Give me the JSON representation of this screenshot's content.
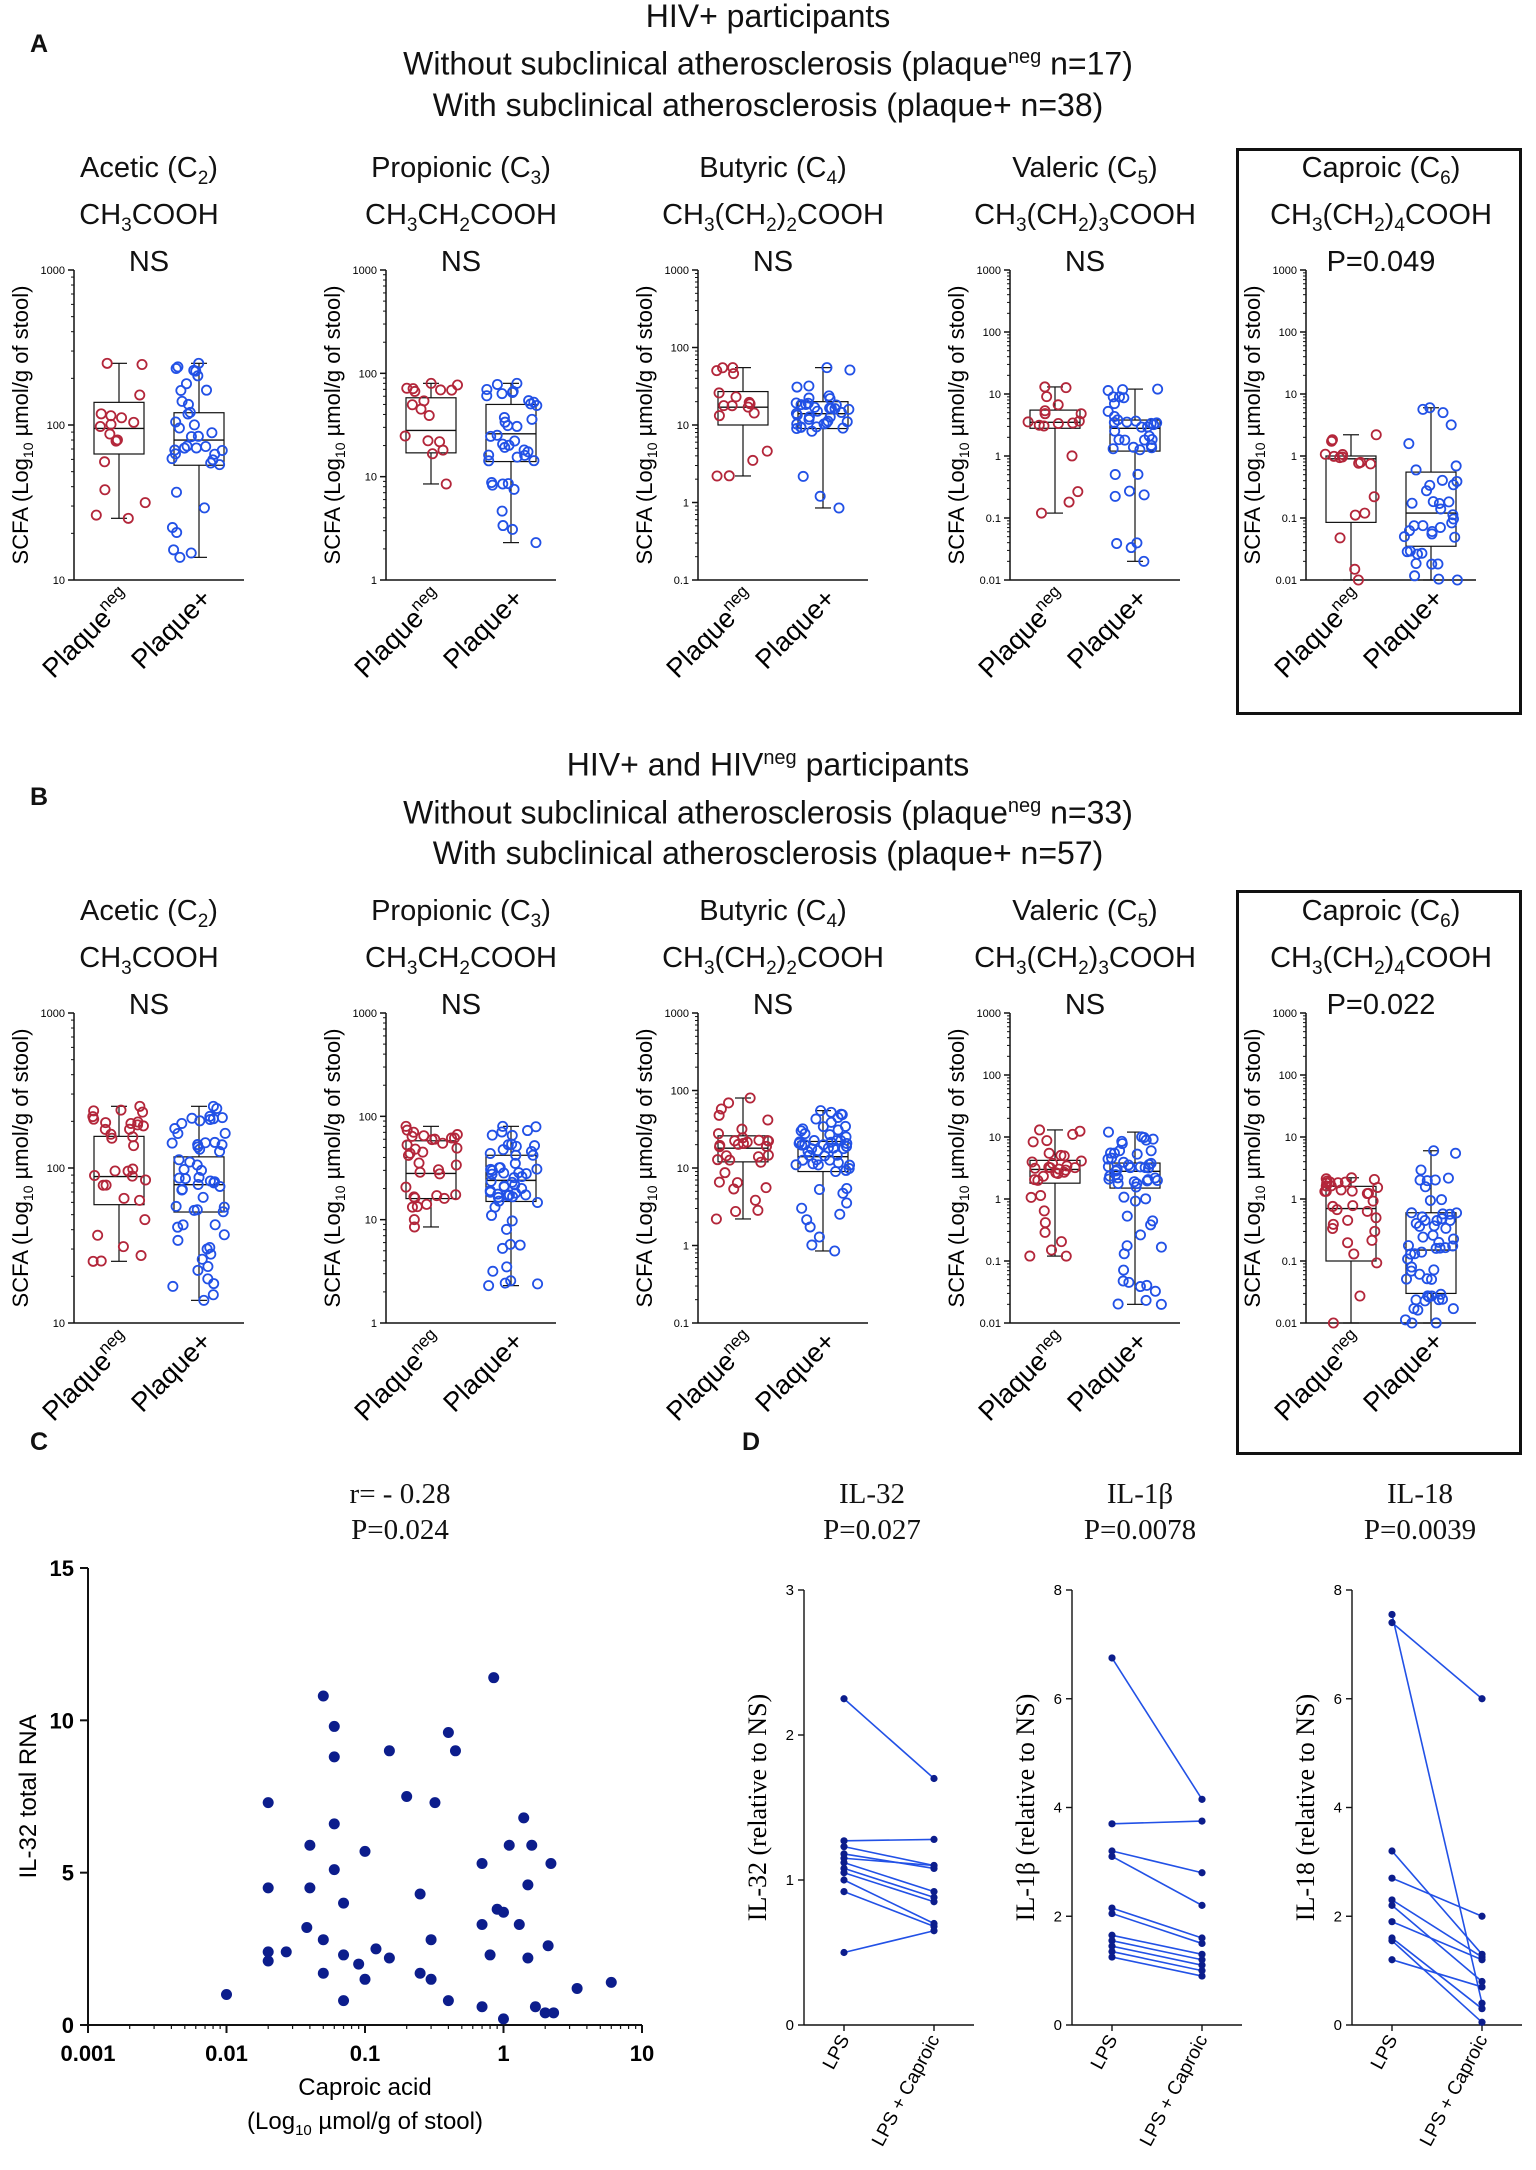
{
  "panel_labels": {
    "a": "A",
    "b": "B",
    "c": "C",
    "d": "D"
  },
  "section_a": {
    "header": {
      "line1": "HIV+ participants",
      "line2_pre": "Without subclinical atherosclerosis (plaque",
      "line2_sup": "neg",
      "line2_post": " n=17)",
      "line3": "With subclinical atherosclerosis (plaque+ n=38)"
    }
  },
  "section_b": {
    "header": {
      "line1": "HIV+ and HIV",
      "line1_sup": "neg",
      "line1_post": " participants",
      "line2_pre": "Without subclinical atherosclerosis (plaque",
      "line2_sup": "neg",
      "line2_post": " n=33)",
      "line3": "With subclinical atherosclerosis (plaque+ n=57)"
    }
  },
  "common": {
    "ylabel_pre": "SCFA (Log",
    "ylabel_sub": "10",
    "ylabel_post": " µmol/g of stool)",
    "group1_label": "Plaque",
    "group1_sup": "neg",
    "group2_label": "Plaque+"
  },
  "colors": {
    "red": "#b3263a",
    "blue": "#2251e6",
    "navy": "#0c1d8c"
  },
  "chart_data": [
    {
      "id": "A-acetic",
      "type": "boxplot",
      "section": "A",
      "name": "Acetic (C",
      "name_sub": "2",
      "formula": "CH3COOH",
      "p_label": "NS",
      "ylim": [
        10,
        1000
      ],
      "yscale": "log",
      "yticks": [
        "10",
        "100",
        "1000"
      ],
      "groups": [
        {
          "name": "Plaqueneg",
          "min": 25,
          "q1": 65,
          "median": 95,
          "q3": 140,
          "max": 250
        },
        {
          "name": "Plaque+",
          "min": 14,
          "q1": 55,
          "median": 80,
          "q3": 120,
          "max": 250
        }
      ]
    },
    {
      "id": "A-propionic",
      "type": "boxplot",
      "section": "A",
      "name": "Propionic (C",
      "name_sub": "3",
      "formula": "CH3CH2COOH",
      "p_label": "NS",
      "ylim": [
        1,
        1000
      ],
      "yscale": "log",
      "yticks": [
        "1",
        "10",
        "100",
        "1000"
      ],
      "groups": [
        {
          "name": "Plaqueneg",
          "min": 8.5,
          "q1": 17,
          "median": 28,
          "q3": 58,
          "max": 80
        },
        {
          "name": "Plaque+",
          "min": 2.3,
          "q1": 14,
          "median": 26,
          "q3": 50,
          "max": 80
        }
      ]
    },
    {
      "id": "A-butyric",
      "type": "boxplot",
      "section": "A",
      "name": "Butyric (C",
      "name_sub": "4",
      "formula": "CH3(CH2)2COOH",
      "p_label": "NS",
      "ylim": [
        0.1,
        1000
      ],
      "yscale": "log",
      "yticks": [
        "0.1",
        "1",
        "10",
        "100",
        "1000"
      ],
      "groups": [
        {
          "name": "Plaqueneg",
          "min": 2.2,
          "q1": 10,
          "median": 17,
          "q3": 27,
          "max": 55
        },
        {
          "name": "Plaque+",
          "min": 0.85,
          "q1": 9,
          "median": 14,
          "q3": 20,
          "max": 55
        }
      ]
    },
    {
      "id": "A-valeric",
      "type": "boxplot",
      "section": "A",
      "name": "Valeric (C",
      "name_sub": "5",
      "formula": "CH3(CH2)3COOH",
      "p_label": "NS",
      "ylim": [
        0.01,
        1000
      ],
      "yscale": "log",
      "yticks": [
        "0.01",
        "0.1",
        "1",
        "10",
        "100",
        "1000"
      ],
      "groups": [
        {
          "name": "Plaqueneg",
          "min": 0.12,
          "q1": 2.8,
          "median": 3.5,
          "q3": 5.5,
          "max": 13
        },
        {
          "name": "Plaque+",
          "min": 0.02,
          "q1": 1.2,
          "median": 2.8,
          "q3": 3.8,
          "max": 12
        }
      ]
    },
    {
      "id": "A-caproic",
      "type": "boxplot",
      "section": "A",
      "highlighted": true,
      "name": "Caproic (C",
      "name_sub": "6",
      "formula": "CH3(CH2)4COOH",
      "p_label": "P=0.049",
      "ylim": [
        0.01,
        1000
      ],
      "yscale": "log",
      "yticks": [
        "0.01",
        "0.1",
        "1",
        "10",
        "100",
        "1000"
      ],
      "groups": [
        {
          "name": "Plaqueneg",
          "min": 0.01,
          "q1": 0.085,
          "median": 0.9,
          "q3": 1.0,
          "max": 2.2
        },
        {
          "name": "Plaque+",
          "min": 0.01,
          "q1": 0.035,
          "median": 0.12,
          "q3": 0.55,
          "max": 6.0
        }
      ]
    },
    {
      "id": "B-acetic",
      "type": "boxplot",
      "section": "B",
      "name": "Acetic (C",
      "name_sub": "2",
      "formula": "CH3COOH",
      "p_label": "NS",
      "ylim": [
        10,
        1000
      ],
      "yscale": "log",
      "yticks": [
        "10",
        "100",
        "1000"
      ],
      "groups": [
        {
          "name": "Plaqueneg",
          "min": 25,
          "q1": 58,
          "median": 88,
          "q3": 160,
          "max": 250
        },
        {
          "name": "Plaque+",
          "min": 14,
          "q1": 52,
          "median": 78,
          "q3": 118,
          "max": 250
        }
      ]
    },
    {
      "id": "B-propionic",
      "type": "boxplot",
      "section": "B",
      "name": "Propionic (C",
      "name_sub": "3",
      "formula": "CH3CH2COOH",
      "p_label": "NS",
      "ylim": [
        1,
        1000
      ],
      "yscale": "log",
      "yticks": [
        "1",
        "10",
        "100",
        "1000"
      ],
      "groups": [
        {
          "name": "Plaqueneg",
          "min": 8.5,
          "q1": 16,
          "median": 28,
          "q3": 58,
          "max": 80
        },
        {
          "name": "Plaque+",
          "min": 2.3,
          "q1": 15,
          "median": 24,
          "q3": 42,
          "max": 80
        }
      ]
    },
    {
      "id": "B-butyric",
      "type": "boxplot",
      "section": "B",
      "name": "Butyric (C",
      "name_sub": "4",
      "formula": "CH3(CH2)2COOH",
      "p_label": "NS",
      "ylim": [
        0.1,
        1000
      ],
      "yscale": "log",
      "yticks": [
        "0.1",
        "1",
        "10",
        "100",
        "1000"
      ],
      "groups": [
        {
          "name": "Plaqueneg",
          "min": 2.2,
          "q1": 12,
          "median": 18,
          "q3": 26,
          "max": 80
        },
        {
          "name": "Plaque+",
          "min": 0.85,
          "q1": 9,
          "median": 14,
          "q3": 22,
          "max": 55
        }
      ]
    },
    {
      "id": "B-valeric",
      "type": "boxplot",
      "section": "B",
      "name": "Valeric (C",
      "name_sub": "5",
      "formula": "CH3(CH2)3COOH",
      "p_label": "NS",
      "ylim": [
        0.01,
        1000
      ],
      "yscale": "log",
      "yticks": [
        "0.01",
        "0.1",
        "1",
        "10",
        "100",
        "1000"
      ],
      "groups": [
        {
          "name": "Plaqueneg",
          "min": 0.12,
          "q1": 1.8,
          "median": 3.0,
          "q3": 4.2,
          "max": 13
        },
        {
          "name": "Plaque+",
          "min": 0.02,
          "q1": 1.5,
          "median": 2.8,
          "q3": 3.8,
          "max": 12
        }
      ]
    },
    {
      "id": "B-caproic",
      "type": "boxplot",
      "section": "B",
      "highlighted": true,
      "name": "Caproic (C",
      "name_sub": "6",
      "formula": "CH3(CH2)4COOH",
      "p_label": "P=0.022",
      "ylim": [
        0.01,
        1000
      ],
      "yscale": "log",
      "yticks": [
        "0.01",
        "0.1",
        "1",
        "10",
        "100",
        "1000"
      ],
      "groups": [
        {
          "name": "Plaqueneg",
          "min": 0.01,
          "q1": 0.1,
          "median": 0.7,
          "q3": 1.6,
          "max": 2.2
        },
        {
          "name": "Plaque+",
          "min": 0.01,
          "q1": 0.03,
          "median": 0.15,
          "q3": 0.6,
          "max": 6.0
        }
      ]
    },
    {
      "id": "C",
      "type": "scatter",
      "title_line1": "r= - 0.28",
      "title_line2": "P=0.024",
      "ylabel": "IL-32 total RNA",
      "xlabel_line1": "Caproic acid",
      "xlabel_line2_pre": "(Log",
      "xlabel_line2_sub": "10",
      "xlabel_line2_post": " µmol/g of stool)",
      "xscale": "log",
      "xlim": [
        0.001,
        10
      ],
      "ylim": [
        0,
        15
      ],
      "xticks": [
        "0.001",
        "0.01",
        "0.1",
        "1",
        "10"
      ],
      "yticks": [
        "0",
        "5",
        "10",
        "15"
      ],
      "points": [
        [
          0.01,
          1.0
        ],
        [
          0.02,
          2.1
        ],
        [
          0.02,
          2.4
        ],
        [
          0.02,
          4.5
        ],
        [
          0.02,
          7.3
        ],
        [
          0.027,
          2.4
        ],
        [
          0.038,
          3.2
        ],
        [
          0.04,
          4.5
        ],
        [
          0.04,
          5.9
        ],
        [
          0.05,
          10.8
        ],
        [
          0.05,
          2.8
        ],
        [
          0.05,
          1.7
        ],
        [
          0.06,
          9.8
        ],
        [
          0.06,
          8.8
        ],
        [
          0.06,
          6.6
        ],
        [
          0.06,
          5.1
        ],
        [
          0.07,
          4.0
        ],
        [
          0.07,
          2.3
        ],
        [
          0.07,
          0.8
        ],
        [
          0.09,
          2.0
        ],
        [
          0.1,
          5.7
        ],
        [
          0.1,
          1.5
        ],
        [
          0.12,
          2.5
        ],
        [
          0.15,
          2.2
        ],
        [
          0.15,
          9.0
        ],
        [
          0.2,
          7.5
        ],
        [
          0.25,
          4.3
        ],
        [
          0.25,
          1.7
        ],
        [
          0.3,
          1.5
        ],
        [
          0.32,
          7.3
        ],
        [
          0.3,
          2.8
        ],
        [
          0.4,
          9.6
        ],
        [
          0.45,
          9.0
        ],
        [
          0.4,
          0.8
        ],
        [
          0.7,
          5.3
        ],
        [
          0.7,
          3.3
        ],
        [
          0.7,
          0.6
        ],
        [
          0.8,
          2.3
        ],
        [
          0.85,
          11.4
        ],
        [
          0.9,
          3.8
        ],
        [
          1.0,
          3.7
        ],
        [
          1.0,
          0.2
        ],
        [
          1.1,
          5.9
        ],
        [
          1.3,
          3.3
        ],
        [
          1.4,
          6.8
        ],
        [
          1.5,
          4.6
        ],
        [
          1.5,
          2.2
        ],
        [
          1.6,
          5.9
        ],
        [
          1.7,
          0.6
        ],
        [
          2.0,
          0.4
        ],
        [
          2.1,
          2.6
        ],
        [
          2.2,
          5.3
        ],
        [
          2.3,
          0.4
        ],
        [
          3.4,
          1.2
        ],
        [
          6.0,
          1.4
        ]
      ]
    },
    {
      "id": "D-IL32",
      "type": "paired-line",
      "title": "IL-32",
      "p_label": "P=0.027",
      "ylabel": "IL-32 (relative to NS)",
      "categories": [
        "LPS",
        "LPS + Caproic"
      ],
      "ylim": [
        0,
        3
      ],
      "yticks": [
        "0",
        "1",
        "2",
        "3"
      ],
      "pairs": [
        [
          2.25,
          1.7
        ],
        [
          1.27,
          1.28
        ],
        [
          1.23,
          1.1
        ],
        [
          1.18,
          1.08
        ],
        [
          1.15,
          1.1
        ],
        [
          1.12,
          0.92
        ],
        [
          1.08,
          0.88
        ],
        [
          1.05,
          0.85
        ],
        [
          1.0,
          0.7
        ],
        [
          0.92,
          0.68
        ],
        [
          0.5,
          0.65
        ]
      ]
    },
    {
      "id": "D-IL1b",
      "type": "paired-line",
      "title": "IL-1β",
      "p_label": "P=0.0078",
      "ylabel": "IL-1β (relative to NS)",
      "categories": [
        "LPS",
        "LPS + Caproic"
      ],
      "ylim": [
        0,
        8
      ],
      "yticks": [
        "0",
        "2",
        "4",
        "6",
        "8"
      ],
      "pairs": [
        [
          6.75,
          4.15
        ],
        [
          3.7,
          3.75
        ],
        [
          3.2,
          2.8
        ],
        [
          3.1,
          2.2
        ],
        [
          2.15,
          1.6
        ],
        [
          2.05,
          1.5
        ],
        [
          1.65,
          1.3
        ],
        [
          1.55,
          1.2
        ],
        [
          1.45,
          1.1
        ],
        [
          1.35,
          1.0
        ],
        [
          1.25,
          0.9
        ]
      ]
    },
    {
      "id": "D-IL18",
      "type": "paired-line",
      "title": "IL-18",
      "p_label": "P=0.0039",
      "ylabel": "IL-18 (relative to NS)",
      "categories": [
        "LPS",
        "LPS + Caproic"
      ],
      "ylim": [
        0,
        8
      ],
      "yticks": [
        "0",
        "2",
        "4",
        "6",
        "8"
      ],
      "pairs": [
        [
          7.55,
          0.4
        ],
        [
          7.4,
          6.0
        ],
        [
          3.2,
          1.3
        ],
        [
          2.7,
          2.0
        ],
        [
          2.3,
          1.25
        ],
        [
          2.2,
          0.8
        ],
        [
          1.9,
          1.2
        ],
        [
          1.6,
          0.3
        ],
        [
          1.55,
          0.05
        ],
        [
          1.2,
          0.7
        ]
      ]
    }
  ]
}
